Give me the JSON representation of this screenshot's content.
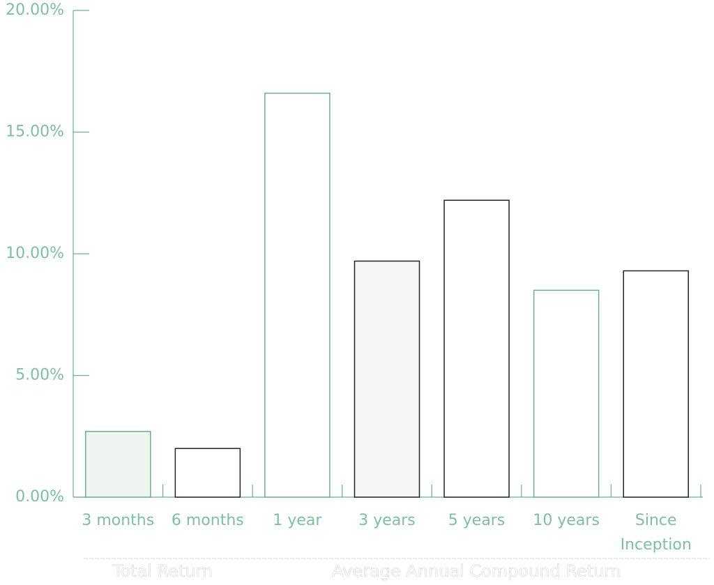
{
  "chart_data": {
    "type": "bar",
    "categories": [
      "3 months",
      "6 months",
      "1 year",
      "3 years",
      "5 years",
      "10 years",
      "Since Inception"
    ],
    "values": [
      2.7,
      2.0,
      16.6,
      9.7,
      12.2,
      8.5,
      9.3
    ],
    "colors": [
      "#6fae90",
      "#222222",
      "#6fae90",
      "#222222",
      "#222222",
      "#6fae90",
      "#222222"
    ],
    "fills": [
      "#eef5f1",
      "#ffffff",
      "#ffffff",
      "#f4f6f4",
      "#ffffff",
      "#ffffff",
      "#ffffff"
    ],
    "ylim": [
      0,
      20
    ],
    "yticks": [
      {
        "value": 0,
        "label": "0.00%"
      },
      {
        "value": 5,
        "label": "5.00%"
      },
      {
        "value": 10,
        "label": "10.00%"
      },
      {
        "value": 15,
        "label": "15.00%"
      },
      {
        "value": 20,
        "label": "20.00%"
      }
    ],
    "group_labels": [
      "Total Return",
      "Average Annual Compound Return"
    ]
  }
}
